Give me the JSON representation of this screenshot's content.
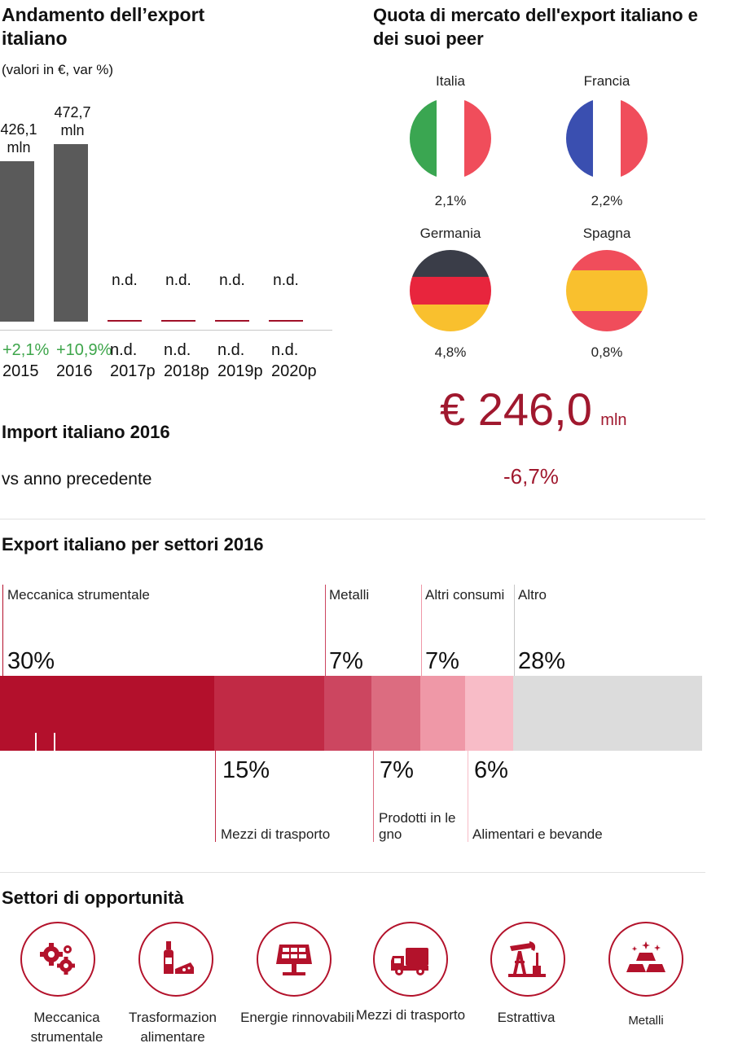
{
  "left": {
    "title": "Andamento dell’export italiano",
    "subtitle": "(valori in €, var %)"
  },
  "chart_data": {
    "type": "bar",
    "categories": [
      "2015",
      "2016",
      "2017p",
      "2018p",
      "2019p",
      "2020p"
    ],
    "values": [
      426.1,
      472.7,
      null,
      null,
      null,
      null
    ],
    "value_labels": [
      "426,1 mln",
      "472,7 mln",
      "n.d.",
      "n.d.",
      "n.d.",
      "n.d."
    ],
    "var_labels": [
      "+2,1%",
      "+10,9%",
      "n.d.",
      "n.d.",
      "n.d.",
      "n.d."
    ],
    "var_colors": [
      "#3da54a",
      "#3da54a",
      "#111111",
      "#111111",
      "#111111",
      "#111111"
    ],
    "title": "Andamento dell’export italiano",
    "bar_color": "#5a5a5a"
  },
  "market_share": {
    "title": "Quota di mercato dell'export italiano e dei suoi peer",
    "countries": [
      {
        "name": "Italia",
        "value": "2,1%",
        "colors": [
          "#3aa651",
          "#ffffff",
          "#f04d5b"
        ],
        "orientation": "vertical"
      },
      {
        "name": "Francia",
        "value": "2,2%",
        "colors": [
          "#3a4fb0",
          "#ffffff",
          "#f04d5b"
        ],
        "orientation": "vertical"
      },
      {
        "name": "Germania",
        "value": "4,8%",
        "colors": [
          "#3a3d48",
          "#e8253d",
          "#f9c02e"
        ],
        "orientation": "horizontal"
      },
      {
        "name": "Spagna",
        "value": "0,8%",
        "colors": [
          "#f04d5b",
          "#f9c02e",
          "#f04d5b"
        ],
        "orientation": "horizontal"
      }
    ]
  },
  "import": {
    "title": "Import italiano 2016",
    "value": "€ 246,0",
    "unit": "mln",
    "vs_label": "vs anno precedente",
    "change": "-6,7%",
    "accent": "#a0182e"
  },
  "sectors": {
    "title": "Export italiano per settori 2016",
    "top": [
      {
        "label": "Meccanica strumentale",
        "pct": "30%"
      },
      {
        "label": "Metalli",
        "pct": "7%"
      },
      {
        "label": "Altri consumi",
        "pct": "7%"
      },
      {
        "label": "Altro",
        "pct": "28%"
      }
    ],
    "bottom": [
      {
        "label": "Mezzi di trasporto",
        "pct": "15%"
      },
      {
        "label": "Prodotti in le gno",
        "pct": "7%"
      },
      {
        "label": "Alimentari e bevande",
        "pct": "6%"
      }
    ],
    "colors": [
      "#b3102c",
      "#c12a45",
      "#cc4660",
      "#dc6c80",
      "#ef98a7",
      "#f8bcc7",
      "#dcdcdc"
    ]
  },
  "opportunities": {
    "title": "Settori di opportunità",
    "items": [
      {
        "label": "Meccanica strumentale",
        "icon": "gears-icon"
      },
      {
        "label": "Trasformazion alimentare",
        "icon": "wine-cheese-icon"
      },
      {
        "label": "Energie rinnovabili",
        "icon": "solar-panel-icon"
      },
      {
        "label": "Mezzi di trasporto",
        "icon": "truck-icon"
      },
      {
        "label": "Estrattiva",
        "icon": "oil-pump-icon"
      },
      {
        "label": "Metalli",
        "icon": "gold-bars-icon"
      }
    ]
  }
}
